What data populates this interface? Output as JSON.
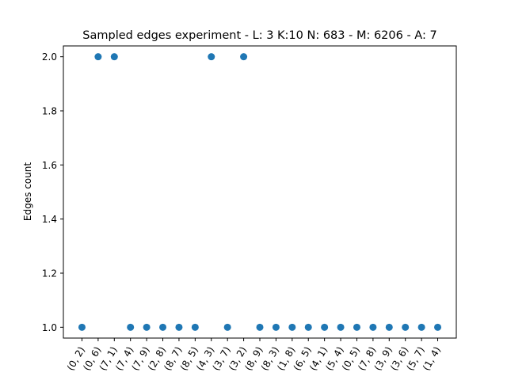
{
  "chart_data": {
    "type": "scatter",
    "title": "Sampled edges experiment - L: 3 K:10 N: 683 - M: 6206 - A: 7",
    "xlabel": "",
    "ylabel": "Edges count",
    "categories": [
      "(0, 2)",
      "(0, 6)",
      "(7, 1)",
      "(7, 4)",
      "(7, 9)",
      "(2, 8)",
      "(8, 7)",
      "(8, 5)",
      "(4, 3)",
      "(3, 7)",
      "(3, 2)",
      "(8, 9)",
      "(8, 3)",
      "(1, 8)",
      "(6, 5)",
      "(4, 1)",
      "(5, 4)",
      "(0, 5)",
      "(7, 8)",
      "(3, 9)",
      "(3, 6)",
      "(5, 7)",
      "(1, 4)"
    ],
    "values": [
      1,
      2,
      2,
      1,
      1,
      1,
      1,
      1,
      2,
      1,
      2,
      1,
      1,
      1,
      1,
      1,
      1,
      1,
      1,
      1,
      1,
      1,
      1
    ],
    "ylim": [
      0.96,
      2.04
    ],
    "yticks": [
      "1.0",
      "1.2",
      "1.4",
      "1.6",
      "1.8",
      "2.0"
    ],
    "grid": false,
    "marker_color": "#1f77b4"
  }
}
